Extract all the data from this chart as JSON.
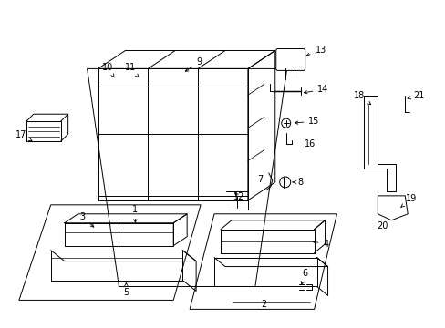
{
  "bg_color": "#ffffff",
  "lc": "#000000",
  "fig_w": 4.89,
  "fig_h": 3.6,
  "dpi": 100
}
